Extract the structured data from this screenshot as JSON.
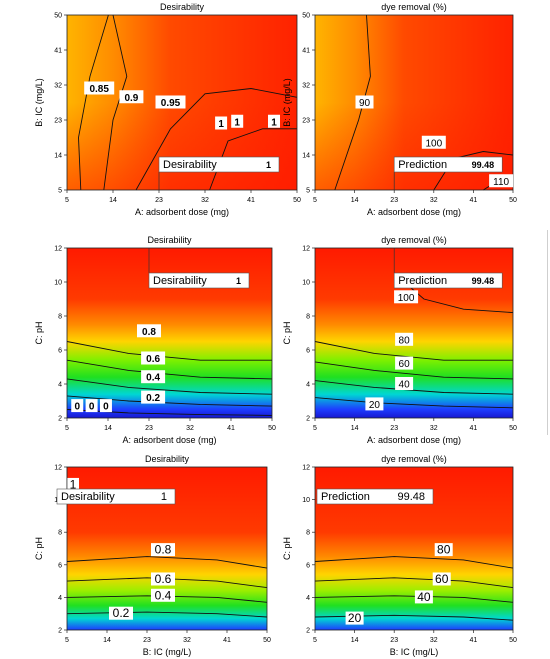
{
  "chart_data": [
    {
      "type": "heatmap",
      "title": "Desirability",
      "xlabel": "A: adsorbent dose (mg)",
      "ylabel": "B: IC (mg/L)",
      "xticks": [
        "5",
        "14",
        "23",
        "32",
        "41",
        "50"
      ],
      "yticks": [
        "5",
        "14",
        "23",
        "32",
        "41",
        "50"
      ],
      "xlim": [
        5,
        50
      ],
      "ylim": [
        5,
        50
      ],
      "contour_labels": [
        "0.85",
        "0.9",
        "0.95",
        "1",
        "1",
        "1"
      ],
      "flag": {
        "label": "Desirability",
        "value": "1",
        "x": 23,
        "y": 5
      }
    },
    {
      "type": "heatmap",
      "title": "dye removal (%)",
      "xlabel": "A: adsorbent dose (mg)",
      "ylabel": "B: IC (mg/L)",
      "xticks": [
        "5",
        "14",
        "23",
        "32",
        "41",
        "50"
      ],
      "yticks": [
        "5",
        "14",
        "23",
        "32",
        "41",
        "50"
      ],
      "xlim": [
        5,
        50
      ],
      "ylim": [
        5,
        50
      ],
      "contour_labels": [
        "90",
        "100",
        "110"
      ],
      "flag": {
        "label": "Prediction",
        "value": "99.48",
        "x": 23,
        "y": 5
      }
    },
    {
      "type": "heatmap",
      "title": "Desirability",
      "xlabel": "A: adsorbent dose (mg)",
      "ylabel": "C: pH",
      "xticks": [
        "5",
        "14",
        "23",
        "32",
        "41",
        "50"
      ],
      "yticks": [
        "2",
        "4",
        "6",
        "8",
        "10",
        "12"
      ],
      "xlim": [
        5,
        50
      ],
      "ylim": [
        2,
        12
      ],
      "contour_labels": [
        "0.8",
        "0.6",
        "0.4",
        "0.2",
        "0",
        "0",
        "0"
      ],
      "flag": {
        "label": "Desirability",
        "value": "1",
        "x": 23,
        "y": 12
      }
    },
    {
      "type": "heatmap",
      "title": "dye removal (%)",
      "xlabel": "A: adsorbent dose (mg)",
      "ylabel": "C: pH",
      "xticks": [
        "5",
        "14",
        "23",
        "32",
        "41",
        "50"
      ],
      "yticks": [
        "2",
        "4",
        "6",
        "8",
        "10",
        "12"
      ],
      "xlim": [
        5,
        50
      ],
      "ylim": [
        2,
        12
      ],
      "contour_labels": [
        "100",
        "80",
        "60",
        "40",
        "20"
      ],
      "flag": {
        "label": "Prediction",
        "value": "99.48",
        "x": 23,
        "y": 12
      }
    },
    {
      "type": "heatmap",
      "title": "Desirability",
      "xlabel": "B: IC (mg/L)",
      "ylabel": "C: pH",
      "xticks": [
        "5",
        "14",
        "23",
        "32",
        "41",
        "50"
      ],
      "yticks": [
        "2",
        "4",
        "6",
        "8",
        "10",
        "12"
      ],
      "xlim": [
        5,
        50
      ],
      "ylim": [
        2,
        12
      ],
      "contour_labels": [
        "1",
        "0.8",
        "0.6",
        "0.4",
        "0.2"
      ],
      "flag": {
        "label": "Desirability",
        "value": "1",
        "x": 5,
        "y": 12
      }
    },
    {
      "type": "heatmap",
      "title": "dye removal (%)",
      "xlabel": "B: IC (mg/L)",
      "ylabel": "C: pH",
      "xticks": [
        "5",
        "14",
        "23",
        "32",
        "41",
        "50"
      ],
      "yticks": [
        "2",
        "4",
        "6",
        "8",
        "10",
        "12"
      ],
      "xlim": [
        5,
        50
      ],
      "ylim": [
        2,
        12
      ],
      "contour_labels": [
        "80",
        "60",
        "40",
        "20"
      ],
      "flag": {
        "label": "Prediction",
        "value": "99.48",
        "x": 5,
        "y": 12
      }
    }
  ],
  "colors": {
    "red": "#ff1a00",
    "orange": "#ff8a00",
    "yellow": "#ffd400",
    "green": "#3ddc12",
    "cyan": "#00d7d2",
    "blue": "#1e3cff"
  }
}
